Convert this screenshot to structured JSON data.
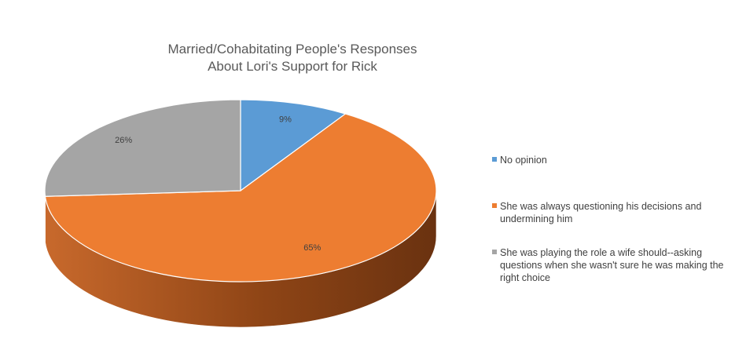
{
  "chart_data": {
    "type": "pie",
    "style": "3d",
    "title": "Married/Cohabitating People's Responses About Lori's Support for Rick",
    "title_lines": [
      "Married/Cohabitating People's Responses",
      "About Lori's Support for Rick"
    ],
    "legend_position": "right",
    "series": [
      {
        "name": "No opinion",
        "legend_lines": [
          "No opinion"
        ],
        "value": 9,
        "label": "9%",
        "color": "#5B9BD5"
      },
      {
        "name": "She was always questioning his decisions and undermining him",
        "legend_lines": [
          "She was always questioning his decisions and",
          "undermining him"
        ],
        "value": 65,
        "label": "65%",
        "color": "#ED7D31"
      },
      {
        "name": "She was playing the role a wife should--asking questions when she wasn't sure he was making the right choice",
        "legend_lines": [
          "She was playing the role a wife should--asking",
          "questions when she wasn't sure he was making the",
          "right choice"
        ],
        "value": 26,
        "label": "26%",
        "color": "#A5A5A5"
      }
    ]
  }
}
